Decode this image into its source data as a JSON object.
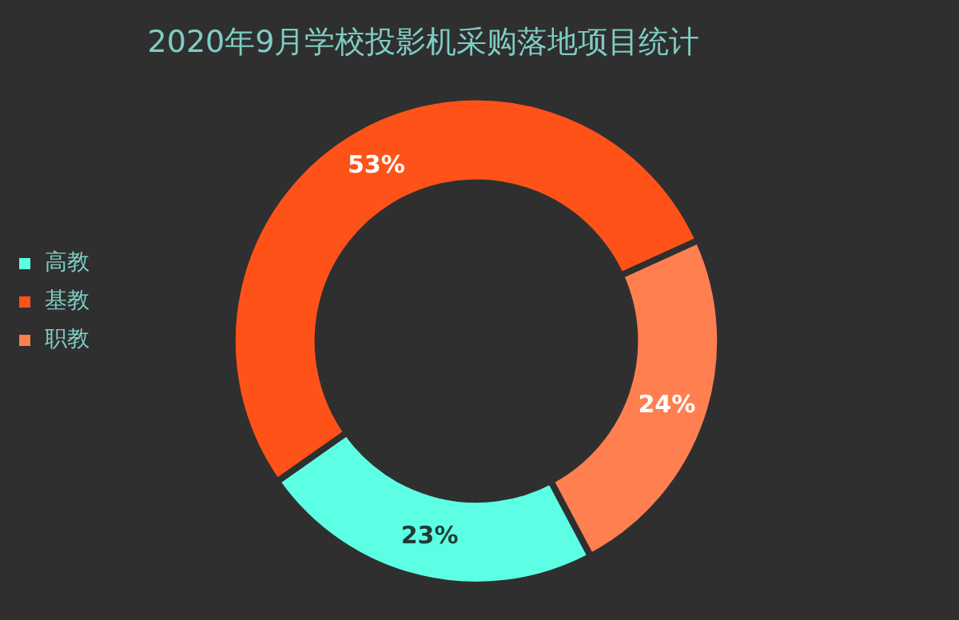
{
  "chart_data": {
    "type": "donut",
    "title": "2020年9月学校投影机采购落地项目统计",
    "categories": [
      "高教",
      "基教",
      "职教"
    ],
    "values": [
      23,
      53,
      24
    ],
    "colors": [
      "#5cffe4",
      "#ff5219",
      "#ff7f50"
    ],
    "value_labels": [
      "23%",
      "53%",
      "24%"
    ],
    "legend": "left"
  }
}
